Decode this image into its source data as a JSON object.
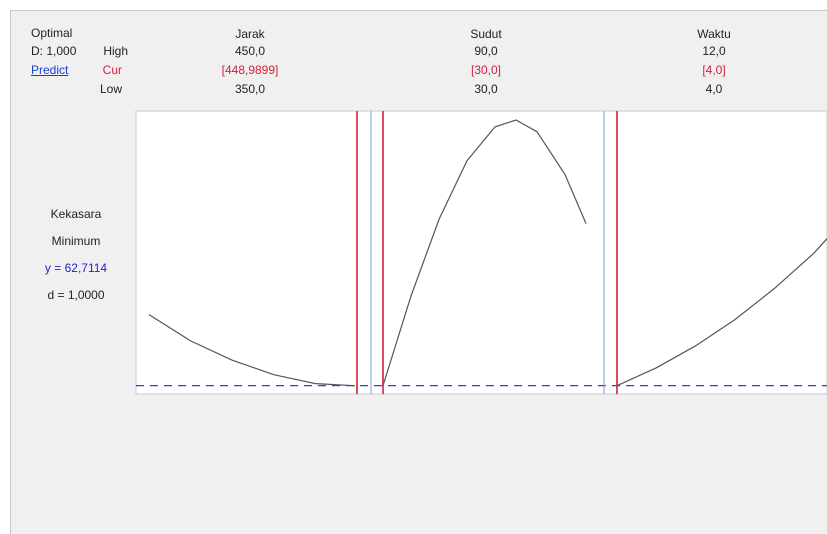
{
  "header": {
    "optimal_label": "Optimal",
    "d_value": "D: 1,000",
    "predict_link": "Predict",
    "row_high": "High",
    "row_cur": "Cur",
    "row_low": "Low"
  },
  "factors": [
    {
      "name": "Jarak",
      "high": "450,0",
      "cur": "[448,9899]",
      "low": "350,0"
    },
    {
      "name": "Sudut",
      "high": "90,0",
      "cur": "[30,0]",
      "low": "30,0"
    },
    {
      "name": "Waktu",
      "high": "12,0",
      "cur": "[4,0]",
      "low": "4,0"
    }
  ],
  "response": {
    "name": "Kekasara",
    "goal": "Minimum",
    "y_text": "y = 62,7114",
    "d_text": "d = 1,0000"
  },
  "colors": {
    "current_line": "#d21f3c",
    "ref_line": "#7aa6c8",
    "target_dash": "#3a3ad6",
    "curve": "#555555",
    "panel_bg": "#f0f0f0"
  },
  "chart_data": {
    "type": "line",
    "panels": [
      {
        "factor": "Jarak",
        "x_range": [
          350,
          450
        ],
        "current": 448.9899,
        "points": [
          [
            350,
            73.0
          ],
          [
            370,
            69.2
          ],
          [
            390,
            66.4
          ],
          [
            410,
            64.3
          ],
          [
            430,
            63.0
          ],
          [
            449,
            62.7
          ]
        ]
      },
      {
        "factor": "Sudut",
        "x_range": [
          30,
          90
        ],
        "current": 30,
        "points": [
          [
            30,
            62.7
          ],
          [
            38,
            75.7
          ],
          [
            46,
            86.8
          ],
          [
            54,
            95.3
          ],
          [
            62,
            100.2
          ],
          [
            68,
            101.2
          ],
          [
            74,
            99.5
          ],
          [
            82,
            93.3
          ],
          [
            88,
            86.2
          ]
        ]
      },
      {
        "factor": "Waktu",
        "x_range": [
          4,
          12
        ],
        "current": 4,
        "points": [
          [
            4,
            62.7
          ],
          [
            5.5,
            65.3
          ],
          [
            7,
            68.5
          ],
          [
            8.5,
            72.3
          ],
          [
            10,
            76.8
          ],
          [
            11.5,
            81.9
          ],
          [
            12,
            84.0
          ]
        ]
      }
    ],
    "y_target": 62.7114,
    "y_range": [
      61.5,
      102.5
    ]
  }
}
